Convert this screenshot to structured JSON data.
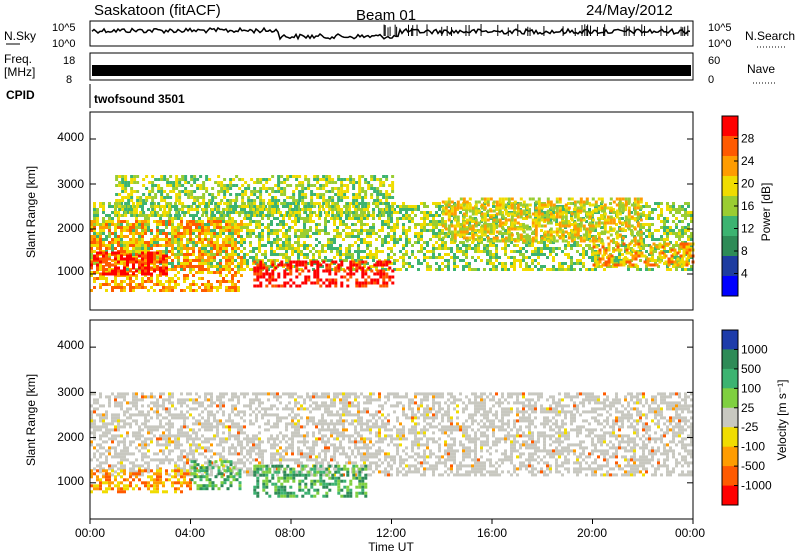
{
  "header": {
    "station": "Saskatoon (fitACF)",
    "beam": "Beam 01",
    "date": "24/May/2012"
  },
  "top_panels": {
    "nsky_label": "N.Sky",
    "nsky_ticks": [
      "10^5",
      "10^0"
    ],
    "nsearch_label": "N.Search",
    "nsearch_ticks": [
      "10^5",
      "10^0"
    ],
    "freq_label": "Freq.",
    "freq_unit": "[MHz]",
    "freq_ticks": [
      "18",
      "8"
    ],
    "nave_label": "Nave",
    "nave_ticks": [
      "60",
      "0"
    ],
    "cpid_label": "CPID",
    "cpid_value": "twofsound 3501"
  },
  "chart_data": [
    {
      "type": "heatmap",
      "panel": "power",
      "ylabel": "Slant Range [km]",
      "yticks": [
        "1000",
        "2000",
        "3000",
        "4000"
      ],
      "ylim": [
        200,
        4600
      ],
      "xlim": [
        0,
        24
      ],
      "colorbar_label": "Power [dB]",
      "colorbar_ticks": [
        "28",
        "24",
        "20",
        "16",
        "12",
        "8",
        "4"
      ],
      "colorbar_colors": [
        "#ff0000",
        "#ff5a00",
        "#ff9c00",
        "#f0dc00",
        "#9acd32",
        "#3cb371",
        "#2e8b57",
        "#1e3ca0",
        "#0000ff"
      ],
      "bands": [
        {
          "x": [
            0,
            24
          ],
          "y": [
            1100,
            2600
          ],
          "level": 4
        },
        {
          "x": [
            0,
            6
          ],
          "y": [
            600,
            2200
          ],
          "level": 6
        },
        {
          "x": [
            0,
            3
          ],
          "y": [
            1000,
            1500
          ],
          "level": 8
        },
        {
          "x": [
            6.5,
            12
          ],
          "y": [
            700,
            1300
          ],
          "level": 8
        },
        {
          "x": [
            1,
            12
          ],
          "y": [
            2300,
            3200
          ],
          "level": 4
        },
        {
          "x": [
            14,
            22
          ],
          "y": [
            1700,
            2700
          ],
          "level": 5
        },
        {
          "x": [
            20,
            24
          ],
          "y": [
            1200,
            1700
          ],
          "level": 6
        }
      ]
    },
    {
      "type": "heatmap",
      "panel": "velocity",
      "ylabel": "Slant Range [km]",
      "yticks": [
        "1000",
        "2000",
        "3000",
        "4000"
      ],
      "ylim": [
        200,
        4600
      ],
      "xlim": [
        0,
        24
      ],
      "colorbar_label": "Velocity [m s⁻¹]",
      "colorbar_ticks": [
        "1000",
        "500",
        "100",
        "25",
        "-25",
        "-100",
        "-500",
        "-1000"
      ],
      "colorbar_colors": [
        "#1e3caa",
        "#2e8b57",
        "#3cb371",
        "#7fd040",
        "#c8c8c0",
        "#f0dc00",
        "#ff9c00",
        "#ff5a00",
        "#ff0000"
      ],
      "bands": [
        {
          "x": [
            0,
            24
          ],
          "y": [
            1200,
            3000
          ],
          "level": "gray"
        },
        {
          "x": [
            0,
            4
          ],
          "y": [
            800,
            1300
          ],
          "level": "orange"
        },
        {
          "x": [
            6.5,
            11
          ],
          "y": [
            700,
            1400
          ],
          "level": "green"
        },
        {
          "x": [
            4,
            6
          ],
          "y": [
            900,
            1500
          ],
          "level": "green"
        }
      ]
    }
  ],
  "xaxis": {
    "label": "Time UT",
    "ticks": [
      "00:00",
      "04:00",
      "08:00",
      "12:00",
      "16:00",
      "20:00",
      "00:00"
    ]
  }
}
